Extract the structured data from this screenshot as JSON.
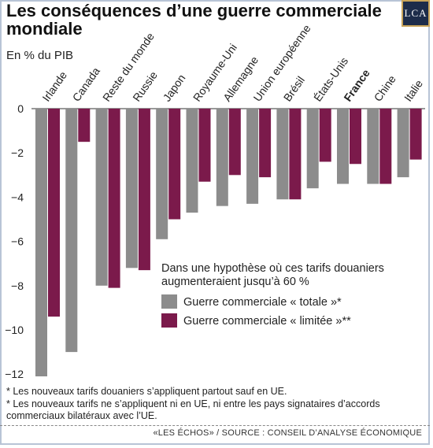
{
  "header": {
    "title": "Les conséquences d’une guerre commerciale mondiale",
    "subtitle": "En % du PIB",
    "logo": "LCA"
  },
  "chart_data": {
    "type": "bar",
    "title": "Les conséquences d’une guerre commerciale mondiale",
    "ylabel": "En % du PIB",
    "categories": [
      "Irlande",
      "Canada",
      "Reste du monde",
      "Russie",
      "Japon",
      "Royaume-Uni",
      "Allemagne",
      "Union européenne",
      "Brésil",
      "États-Unis",
      "France",
      "Chine",
      "Italie"
    ],
    "highlight_category": "France",
    "series": [
      {
        "name": "Guerre commerciale « totale »*",
        "color": "#8c8c8c",
        "values": [
          -12.1,
          -11.0,
          -8.0,
          -7.2,
          -5.9,
          -4.7,
          -4.4,
          -4.3,
          -4.1,
          -3.6,
          -3.4,
          -3.4,
          -3.1
        ]
      },
      {
        "name": "Guerre commerciale « limitée »**",
        "color": "#7b1a4b",
        "values": [
          -9.4,
          -1.5,
          -8.1,
          -7.3,
          -5.0,
          -3.3,
          -3.0,
          -3.1,
          -4.1,
          -2.4,
          -2.5,
          -3.4,
          -2.3
        ]
      }
    ],
    "yticks": [
      "0",
      "-2",
      "-4",
      "-6",
      "-8",
      "-10",
      "-12"
    ],
    "ylim": [
      -12.4,
      0
    ],
    "grid": false,
    "legend_title": "Dans une hypothèse où ces tarifs douaniers augmenteraient jusqu’à 60 %",
    "legend_placement": "bottom-right"
  },
  "notes": [
    "* Les nouveaux tarifs douaniers s’appliquent partout sauf en UE.",
    "* Les nouveaux tarifs ne s’appliquent ni en UE, ni entre les pays signataires d’accords commerciaux bilatéraux avec l’UE."
  ],
  "source": "«LES ÉCHOS» / SOURCE : CONSEIL D’ANALYSE ÉCONOMIQUE"
}
